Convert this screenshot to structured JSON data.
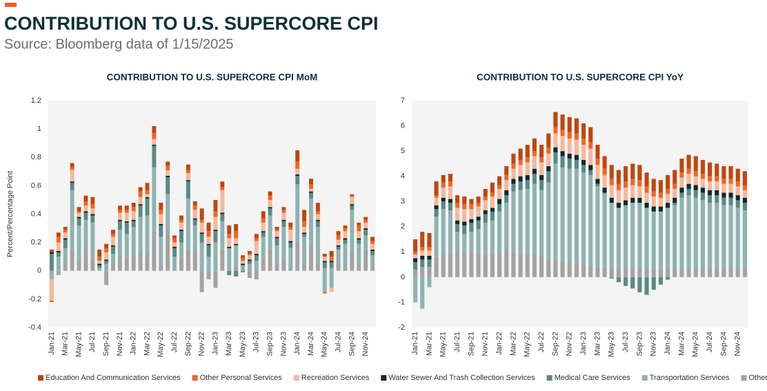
{
  "title": "CONTRIBUTION TO U.S. SUPERCORE CPI",
  "subtitle": "Source: Bloomberg data of 1/15/2025",
  "chart_data": [
    {
      "type": "bar",
      "stacked": true,
      "title": "CONTRIBUTION TO U.S. SUPERCORE CPI MoM",
      "y_label": "Percent/Percentage Point",
      "categories": [
        "Jan-21",
        null,
        "Mar-21",
        null,
        "May-21",
        null,
        "Jul-21",
        null,
        "Sep-21",
        null,
        "Nov-21",
        null,
        "Jan-22",
        null,
        "Mar-22",
        null,
        "May-22",
        null,
        "Jul-22",
        null,
        "Sep-22",
        null,
        "Nov-22",
        null,
        "Jan-23",
        null,
        "Mar-23",
        null,
        "May-23",
        null,
        "Jul-23",
        null,
        "Sep-23",
        null,
        "Nov-23",
        null,
        "Jan-24",
        null,
        "Mar-24",
        null,
        "May-24",
        null,
        "Jul-24",
        null,
        "Sep-24",
        null,
        "Nov-24",
        null
      ],
      "ylim": [
        -0.4,
        1.2
      ],
      "yticks": [
        -0.4,
        -0.2,
        0,
        0.2,
        0.4,
        0.6,
        0.8,
        1,
        1.2
      ],
      "series": [
        {
          "name": "Education And Communication Services",
          "color": "#c0460e",
          "values": [
            0.02,
            0.03,
            0.02,
            0.03,
            0.03,
            0.04,
            0.05,
            0.05,
            0.03,
            0.03,
            0.03,
            0.03,
            0.03,
            0.03,
            0.05,
            0.05,
            0.05,
            0.03,
            0.02,
            0.03,
            0.04,
            0.03,
            0.08,
            0.06,
            0.08,
            0.04,
            0.06,
            0.05,
            0.02,
            0.02,
            0.03,
            0.05,
            0.03,
            0.02,
            0.02,
            0.03,
            0.08,
            0.08,
            0.04,
            0.06,
            0.02,
            0.04,
            0.03,
            0.02,
            0.01,
            0.02,
            0.02,
            0.03
          ]
        },
        {
          "name": "Other Personal Services",
          "color": "#f26522",
          "values": [
            -0.01,
            0.04,
            0.02,
            0.02,
            0.01,
            0.03,
            0.03,
            0.03,
            0.03,
            0.02,
            0.02,
            0.02,
            0.03,
            0.04,
            0.03,
            0.04,
            0.03,
            0.03,
            0.03,
            0.02,
            0.02,
            0.03,
            0.02,
            0.04,
            0.04,
            0.02,
            0.03,
            0.05,
            0.02,
            0.01,
            0.02,
            0.03,
            0.03,
            0.01,
            0.02,
            0.02,
            0.05,
            0.04,
            0.03,
            0.02,
            -0.01,
            0.03,
            0.03,
            0.02,
            0.01,
            0.04,
            0.02,
            0.02
          ]
        },
        {
          "name": "Recreation Services",
          "color": "#f7b89a",
          "values": [
            -0.15,
            0.06,
            0.04,
            0.08,
            0.03,
            0.04,
            0.04,
            0.02,
            0.05,
            0.06,
            0.05,
            0.06,
            0.06,
            0.05,
            0.02,
            0.04,
            0.07,
            0.04,
            0.03,
            0.05,
            0.05,
            0.06,
            0.07,
            0.05,
            0.09,
            0.16,
            0.06,
            0.04,
            0.02,
            0.03,
            0.09,
            0.06,
            0.05,
            0.04,
            0.05,
            0.08,
            0.04,
            0.04,
            0.02,
            0.04,
            0.03,
            -0.03,
            0.04,
            0.05,
            0.05,
            0.05,
            0.04,
            0.04
          ]
        },
        {
          "name": "Water Sewer And Trash Collection Services",
          "color": "#0d2b2e",
          "values": [
            0.01,
            0.01,
            0.01,
            0.01,
            0.01,
            0.01,
            0.01,
            0.01,
            0.01,
            0.01,
            0.01,
            0.01,
            0.01,
            0.01,
            0.01,
            0.01,
            0.01,
            0.01,
            0.01,
            0.01,
            0.01,
            0.01,
            0.01,
            0.01,
            0.01,
            0.01,
            0.01,
            0.01,
            0.01,
            0.01,
            0.01,
            0.01,
            0.01,
            0.01,
            0.01,
            0.01,
            0.01,
            0.01,
            0.01,
            0.01,
            0.01,
            0.01,
            0.01,
            0.01,
            0.01,
            0.01,
            0.01,
            0.01
          ]
        },
        {
          "name": "Medical Care Services",
          "color": "#5a8a84",
          "values": [
            0.12,
            0.03,
            0.06,
            0.05,
            0.05,
            0.05,
            0.05,
            0.02,
            0.02,
            0.05,
            0.06,
            0.08,
            0.04,
            0.08,
            0.12,
            0.15,
            0.08,
            0.12,
            0.06,
            0.08,
            0.12,
            0.04,
            0.06,
            0.08,
            0.08,
            0.05,
            -0.03,
            -0.04,
            -0.01,
            0.02,
            0.04,
            0.03,
            0.05,
            0.05,
            0.04,
            0.04,
            0.06,
            0.02,
            0.04,
            0.04,
            0.04,
            0.04,
            0.02,
            0.03,
            0.03,
            0.03,
            0.04,
            0.03
          ]
        },
        {
          "name": "Transportation Services",
          "color": "#8fb3b1",
          "values": [
            -0.06,
            0.1,
            0.12,
            0.42,
            0.25,
            0.2,
            0.25,
            0.02,
            0.05,
            0.08,
            0.18,
            0.16,
            0.2,
            0.25,
            0.25,
            0.45,
            0.2,
            0.25,
            0.1,
            0.1,
            0.36,
            0.18,
            0.2,
            0.1,
            0.2,
            0.2,
            0.16,
            0.15,
            0.04,
            0.05,
            0.07,
            0.16,
            0.24,
            0.12,
            0.23,
            0.16,
            0.4,
            0.2,
            0.32,
            0.26,
            -0.15,
            -0.12,
            0.1,
            0.17,
            0.3,
            0.15,
            0.1,
            0.08
          ]
        },
        {
          "name": "Other",
          "color": "#a3a3a3",
          "values": [
            0,
            -0.03,
            0.04,
            0.15,
            0.07,
            0.16,
            0.09,
            0,
            -0.1,
            0.04,
            0.11,
            0.1,
            0.11,
            0.13,
            0.14,
            0.28,
            0.04,
            0.29,
            0,
            0.1,
            0.15,
            0.14,
            -0.15,
            -0.06,
            -0.12,
            0.15,
            0,
            0.03,
            0,
            -0.05,
            -0.06,
            0.08,
            0.15,
            0.06,
            0.08,
            0,
            0.21,
            0.04,
            0.19,
            0.05,
            0.02,
            0.02,
            0.05,
            0.02,
            0.13,
            0.04,
            0.15,
            0.03
          ]
        }
      ]
    },
    {
      "type": "bar",
      "stacked": true,
      "title": "CONTRIBUTION TO U.S. SUPERCORE CPI YoY",
      "categories": [
        "Jan-21",
        null,
        "Mar-21",
        null,
        "May-21",
        null,
        "Jul-21",
        null,
        "Sep-21",
        null,
        "Nov-21",
        null,
        "Jan-22",
        null,
        "Mar-22",
        null,
        "May-22",
        null,
        "Jul-22",
        null,
        "Sep-22",
        null,
        "Nov-22",
        null,
        "Jan-23",
        null,
        "Mar-23",
        null,
        "May-23",
        null,
        "Jul-23",
        null,
        "Sep-23",
        null,
        "Nov-23",
        null,
        "Jan-24",
        null,
        "Mar-24",
        null,
        "May-24",
        null,
        "Jul-24",
        null,
        "Sep-24",
        null,
        "Nov-24",
        null
      ],
      "ylim": [
        -2,
        7
      ],
      "yticks": [
        -2,
        -1,
        0,
        1,
        2,
        3,
        4,
        5,
        6,
        7
      ],
      "series": [
        {
          "name": "Education And Communication Services",
          "color": "#c0460e",
          "values": [
            0.5,
            0.6,
            0.55,
            0.55,
            0.3,
            0.3,
            0.3,
            0.3,
            0.2,
            0.25,
            0.3,
            0.4,
            0.35,
            0.35,
            0.4,
            0.45,
            0.5,
            0.5,
            0.5,
            0.55,
            0.6,
            0.6,
            0.6,
            0.6,
            0.6,
            0.6,
            0.55,
            0.5,
            0.55,
            0.55,
            0.6,
            0.6,
            0.6,
            0.55,
            0.5,
            0.5,
            0.55,
            0.55,
            0.55,
            0.55,
            0.6,
            0.55,
            0.55,
            0.5,
            0.5,
            0.5,
            0.5,
            0.55
          ]
        },
        {
          "name": "Other Personal Services",
          "color": "#f26522",
          "values": [
            0.1,
            0.15,
            0.15,
            0.1,
            0.2,
            0.2,
            0.2,
            0.2,
            0.2,
            0.15,
            0.15,
            0.15,
            0.15,
            0.2,
            0.2,
            0.2,
            0.2,
            0.2,
            0.2,
            0.25,
            0.25,
            0.25,
            0.25,
            0.25,
            0.25,
            0.25,
            0.25,
            0.25,
            0.25,
            0.25,
            0.25,
            0.25,
            0.25,
            0.25,
            0.2,
            0.2,
            0.2,
            0.2,
            0.2,
            0.2,
            0.2,
            0.2,
            0.2,
            0.2,
            0.2,
            0.2,
            0.2,
            0.2
          ]
        },
        {
          "name": "Recreation Services",
          "color": "#f7b89a",
          "values": [
            0.15,
            0.2,
            0.2,
            0.3,
            0.4,
            0.5,
            0.5,
            0.5,
            0.4,
            0.4,
            0.4,
            0.45,
            0.4,
            0.4,
            0.4,
            0.45,
            0.5,
            0.5,
            0.5,
            0.5,
            0.55,
            0.6,
            0.6,
            0.6,
            0.6,
            0.65,
            0.55,
            0.5,
            0.5,
            0.5,
            0.5,
            0.5,
            0.45,
            0.4,
            0.4,
            0.35,
            0.35,
            0.35,
            0.4,
            0.4,
            0.35,
            0.35,
            0.35,
            0.35,
            0.35,
            0.35,
            0.35,
            0.3
          ]
        },
        {
          "name": "Water Sewer And Trash Collection Services",
          "color": "#0d2b2e",
          "values": [
            0.15,
            0.15,
            0.15,
            0.15,
            0.15,
            0.15,
            0.15,
            0.15,
            0.15,
            0.15,
            0.15,
            0.15,
            0.2,
            0.2,
            0.2,
            0.2,
            0.2,
            0.2,
            0.2,
            0.2,
            0.2,
            0.2,
            0.2,
            0.2,
            0.2,
            0.2,
            0.2,
            0.2,
            0.2,
            0.2,
            0.2,
            0.2,
            0.2,
            0.2,
            0.2,
            0.2,
            0.2,
            0.2,
            0.2,
            0.2,
            0.2,
            0.2,
            0.2,
            0.2,
            0.2,
            0.2,
            0.2,
            0.2
          ]
        },
        {
          "name": "Medical Care Services",
          "color": "#5a8a84",
          "values": [
            0.3,
            0.3,
            0.3,
            0.3,
            0.3,
            0.3,
            0.3,
            0.35,
            0.35,
            0.35,
            0.35,
            0.35,
            0.3,
            0.3,
            0.3,
            0.35,
            0.35,
            0.4,
            0.4,
            0.45,
            0.45,
            0.45,
            0.4,
            0.35,
            0.3,
            0.2,
            0.1,
            0.05,
            -0.05,
            -0.2,
            -0.35,
            -0.45,
            -0.6,
            -0.7,
            -0.5,
            -0.3,
            -0.1,
            0.1,
            0.2,
            0.25,
            0.3,
            0.3,
            0.3,
            0.3,
            0.3,
            0.3,
            0.3,
            0.3
          ]
        },
        {
          "name": "Transportation Services",
          "color": "#8fb3b1",
          "values": [
            -1.0,
            -1.25,
            -0.4,
            1.6,
            1.8,
            1.7,
            0.8,
            0.7,
            0.8,
            1.0,
            1.2,
            1.3,
            1.6,
            1.9,
            2.4,
            2.5,
            2.6,
            2.8,
            2.6,
            3.0,
            3.8,
            3.7,
            3.7,
            3.75,
            3.65,
            3.6,
            3.2,
            2.9,
            2.6,
            2.4,
            2.5,
            2.6,
            2.6,
            2.4,
            2.3,
            2.3,
            2.4,
            2.5,
            2.8,
            2.9,
            2.8,
            2.7,
            2.6,
            2.6,
            2.5,
            2.5,
            2.4,
            2.3
          ]
        },
        {
          "name": "Other",
          "color": "#a3a3a3",
          "values": [
            0.3,
            0.4,
            0.4,
            0.8,
            0.9,
            0.95,
            1.0,
            1.0,
            1.0,
            0.9,
            0.95,
            0.95,
            1.0,
            1.05,
            1.0,
            0.95,
            0.9,
            0.9,
            0.85,
            0.75,
            0.7,
            0.65,
            0.6,
            0.55,
            0.5,
            0.45,
            0.4,
            0.4,
            0.35,
            0.35,
            0.35,
            0.35,
            0.35,
            0.35,
            0.3,
            0.3,
            0.35,
            0.35,
            0.35,
            0.35,
            0.35,
            0.35,
            0.35,
            0.35,
            0.35,
            0.35,
            0.35,
            0.35
          ]
        }
      ]
    }
  ]
}
